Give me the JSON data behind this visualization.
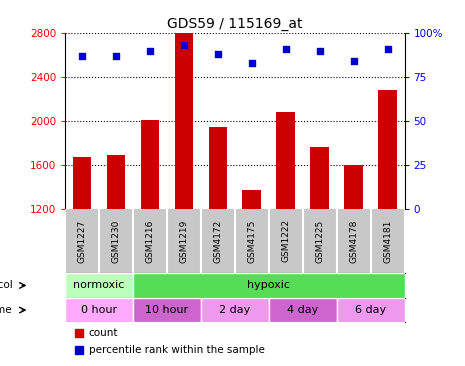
{
  "title": "GDS59 / 115169_at",
  "samples": [
    "GSM1227",
    "GSM1230",
    "GSM1216",
    "GSM1219",
    "GSM4172",
    "GSM4175",
    "GSM1222",
    "GSM1225",
    "GSM4178",
    "GSM4181"
  ],
  "counts": [
    1670,
    1690,
    2010,
    2800,
    1940,
    1370,
    2080,
    1760,
    1600,
    2280
  ],
  "percentiles": [
    87,
    87,
    90,
    93,
    88,
    83,
    91,
    90,
    84,
    91
  ],
  "ylim_left": [
    1200,
    2800
  ],
  "ylim_right": [
    0,
    100
  ],
  "yticks_left": [
    1200,
    1600,
    2000,
    2400,
    2800
  ],
  "yticks_right": [
    0,
    25,
    50,
    75,
    100
  ],
  "bar_color": "#cc0000",
  "dot_color": "#0000cc",
  "sample_bg_color": "#c8c8c8",
  "protocol_groups": [
    {
      "label": "normoxic",
      "start": 0,
      "end": 2,
      "color": "#bbffbb"
    },
    {
      "label": "hypoxic",
      "start": 2,
      "end": 10,
      "color": "#55dd55"
    }
  ],
  "time_groups": [
    {
      "label": "0 hour",
      "start": 0,
      "end": 2,
      "color": "#ffaaff"
    },
    {
      "label": "10 hour",
      "start": 2,
      "end": 4,
      "color": "#cc66cc"
    },
    {
      "label": "2 day",
      "start": 4,
      "end": 6,
      "color": "#ee99ee"
    },
    {
      "label": "4 day",
      "start": 6,
      "end": 8,
      "color": "#cc66cc"
    },
    {
      "label": "6 day",
      "start": 8,
      "end": 10,
      "color": "#ee99ee"
    }
  ],
  "legend_count_label": "count",
  "legend_pct_label": "percentile rank within the sample"
}
